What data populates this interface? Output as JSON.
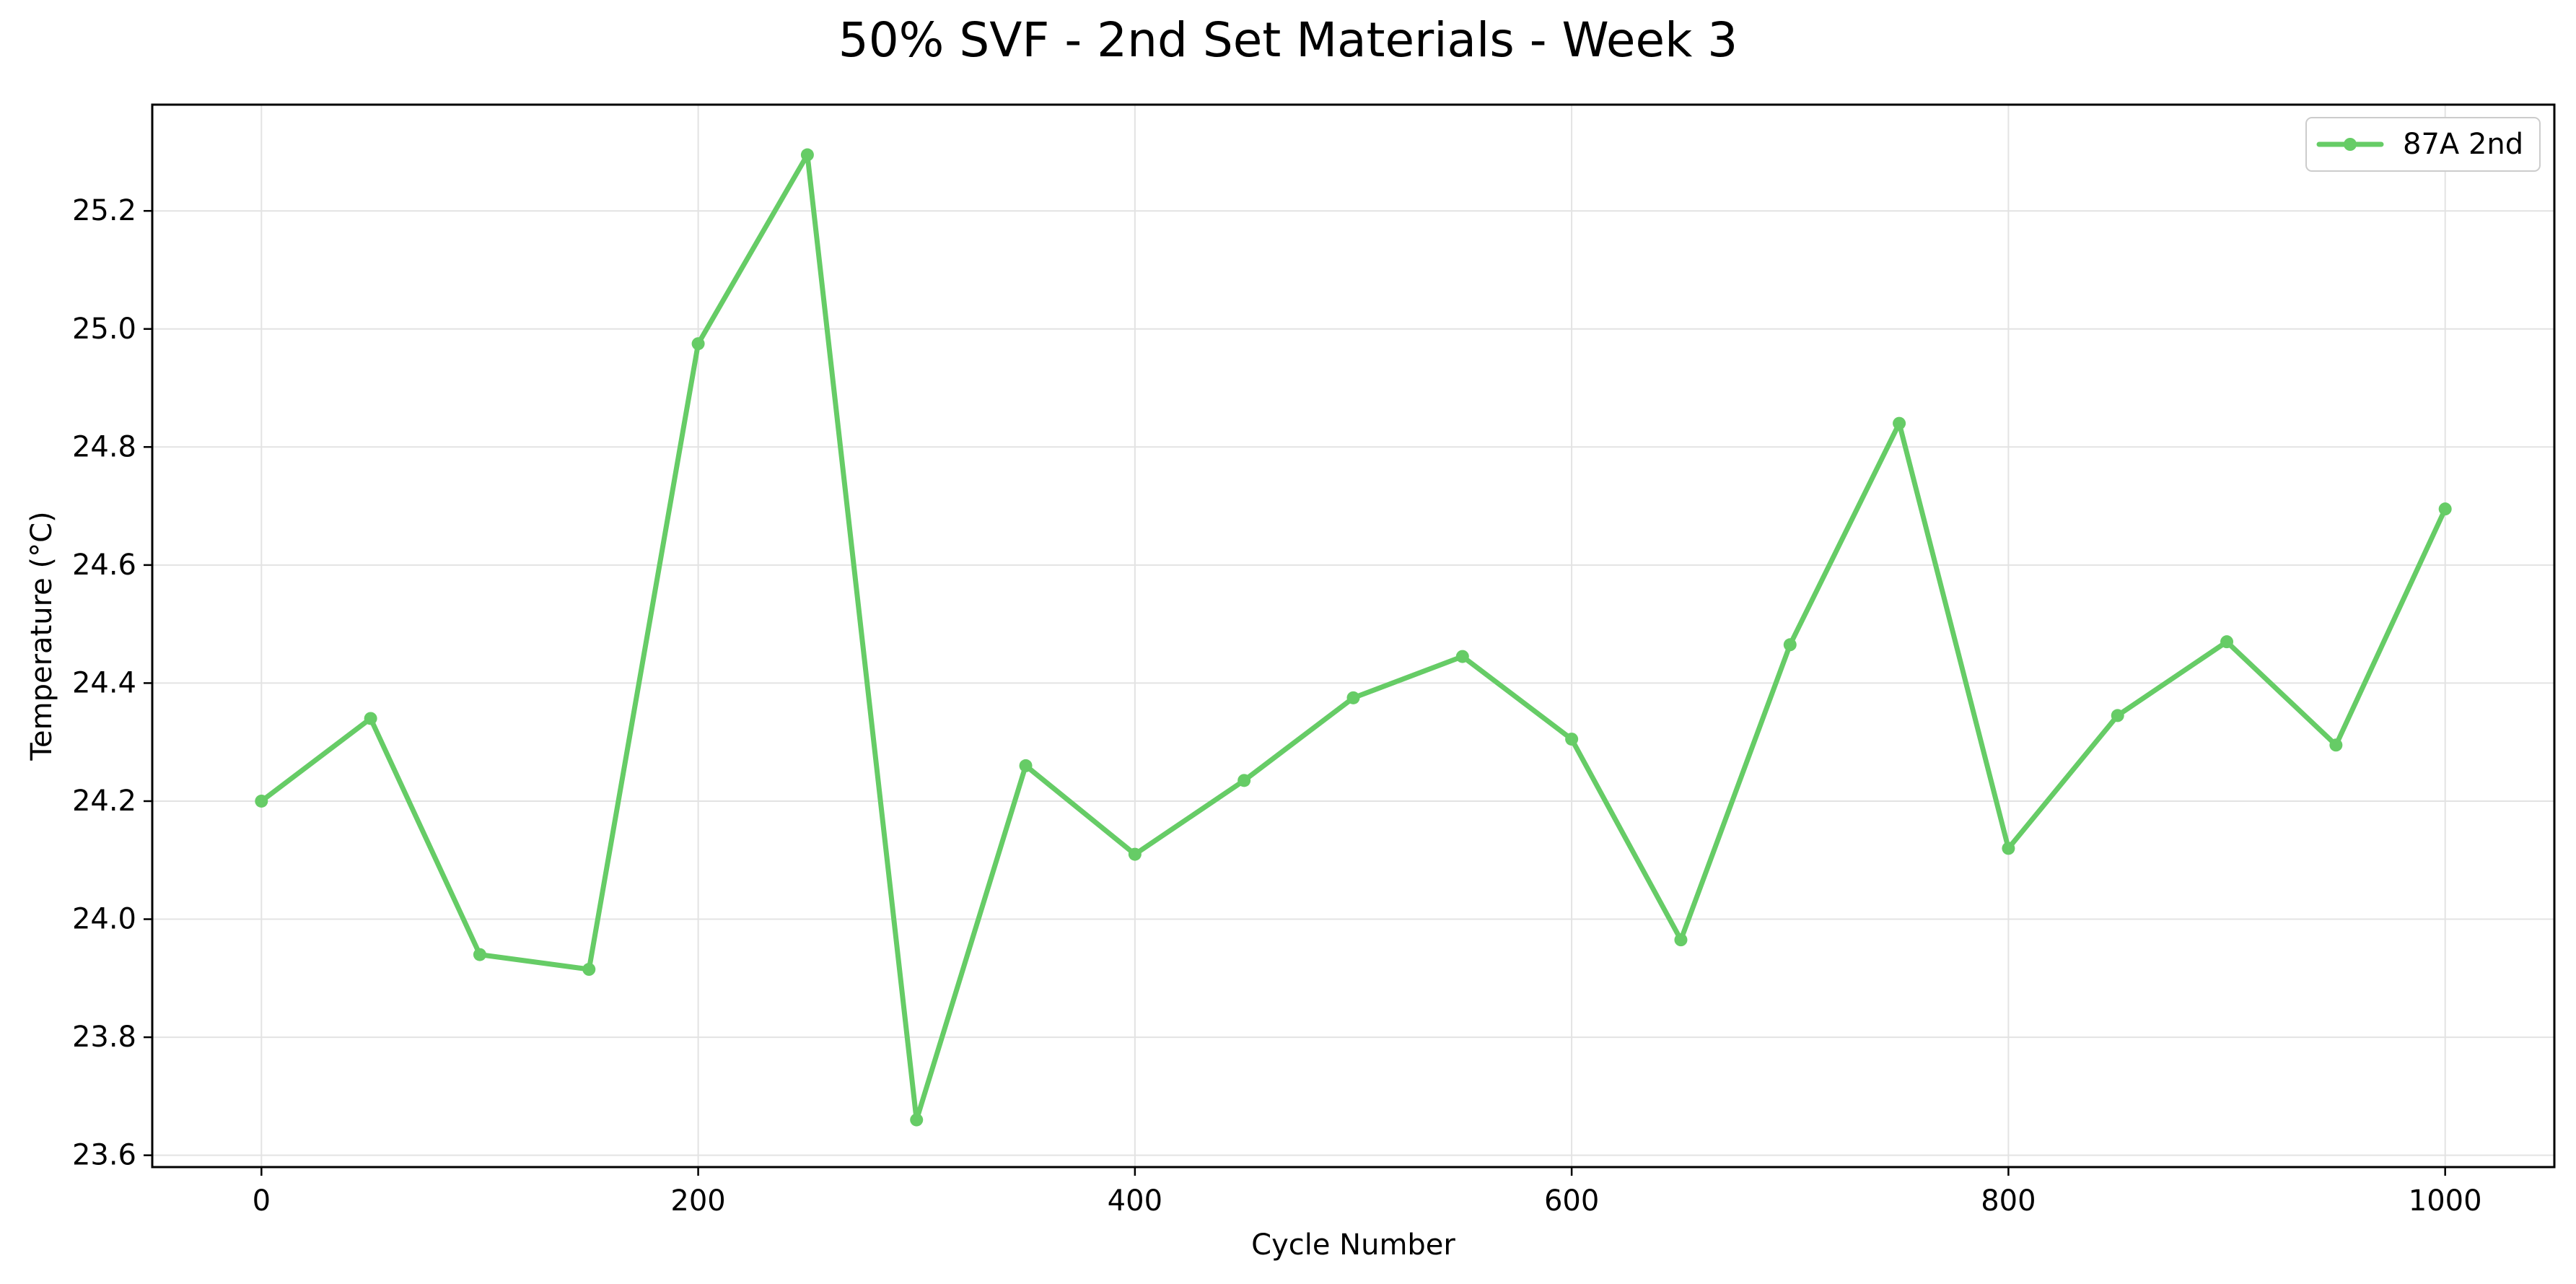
{
  "chart_data": {
    "type": "line",
    "title": "50% SVF - 2nd Set Materials - Week 3",
    "xlabel": "Cycle Number",
    "ylabel": "Temperature (°C)",
    "xlim": [
      -50,
      1050
    ],
    "ylim": [
      23.58,
      25.38
    ],
    "xticks": [
      0,
      200,
      400,
      600,
      800,
      1000
    ],
    "yticks": [
      23.6,
      23.8,
      24.0,
      24.2,
      24.4,
      24.6,
      24.8,
      25.0,
      25.2
    ],
    "xtick_labels": [
      "0",
      "200",
      "400",
      "600",
      "800",
      "1000"
    ],
    "ytick_labels": [
      "23.6",
      "23.8",
      "24.0",
      "24.2",
      "24.4",
      "24.6",
      "24.8",
      "25.0",
      "25.2"
    ],
    "grid": true,
    "legend_position": "top-right",
    "x": [
      0,
      50,
      100,
      150,
      200,
      250,
      300,
      350,
      400,
      450,
      500,
      550,
      600,
      650,
      700,
      750,
      800,
      850,
      900,
      950,
      1000
    ],
    "series": [
      {
        "name": "87A 2nd",
        "color": "#66cc66",
        "values": [
          24.2,
          24.34,
          23.94,
          23.915,
          24.975,
          25.295,
          23.66,
          24.26,
          24.11,
          24.235,
          24.375,
          24.445,
          24.305,
          23.965,
          24.465,
          24.84,
          24.12,
          24.345,
          24.47,
          24.295,
          24.695
        ]
      }
    ]
  }
}
